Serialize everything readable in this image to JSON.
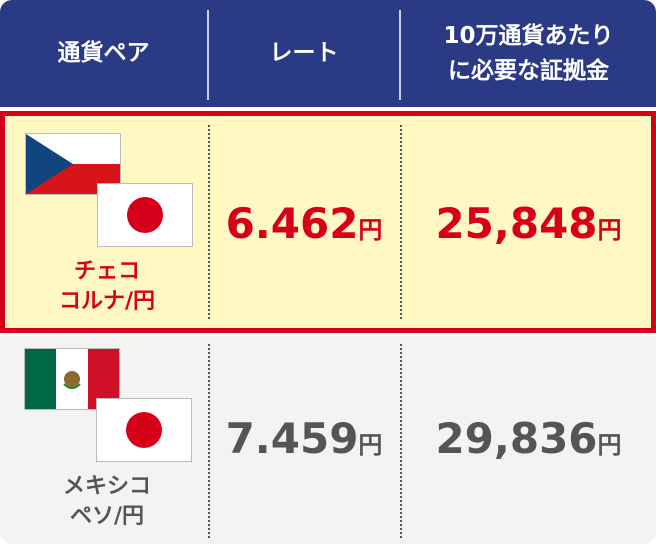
{
  "header": {
    "cells": [
      [
        "通貨ペア"
      ],
      [
        "レート"
      ],
      [
        "10万通貨あたり",
        "に必要な証拠金"
      ]
    ]
  },
  "rows": [
    {
      "pair_lines": [
        "チェコ",
        "コルナ/円"
      ],
      "rate": "6.462",
      "rate_unit": "円",
      "margin": "25,848",
      "margin_unit": "円",
      "highlighted": true
    },
    {
      "pair_lines": [
        "メキシコ",
        "ペソ/円"
      ],
      "rate": "7.459",
      "rate_unit": "円",
      "margin": "29,836",
      "margin_unit": "円",
      "highlighted": false
    }
  ]
}
